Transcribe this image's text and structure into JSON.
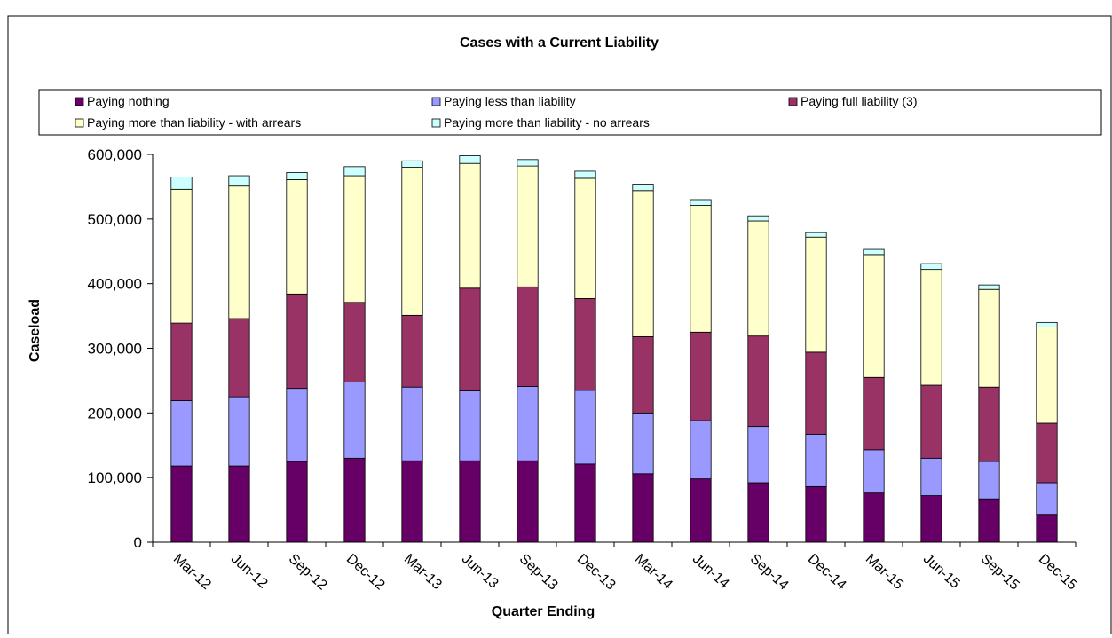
{
  "chart_data": {
    "type": "bar",
    "stacked": true,
    "title": "Cases with a Current Liability",
    "xlabel": "Quarter Ending",
    "ylabel": "Caseload",
    "ylim": [
      0,
      600000
    ],
    "yticks": [
      0,
      100000,
      200000,
      300000,
      400000,
      500000,
      600000
    ],
    "ytick_labels": [
      "0",
      "100,000",
      "200,000",
      "300,000",
      "400,000",
      "500,000",
      "600,000"
    ],
    "grid": false,
    "legend_position": "top",
    "categories": [
      "Mar-12",
      "Jun-12",
      "Sep-12",
      "Dec-12",
      "Mar-13",
      "Jun-13",
      "Sep-13",
      "Dec-13",
      "Mar-14",
      "Jun-14",
      "Sep-14",
      "Dec-14",
      "Mar-15",
      "Jun-15",
      "Sep-15",
      "Dec-15"
    ],
    "series": [
      {
        "name": "Paying nothing",
        "color": "#660066",
        "values": [
          118000,
          118000,
          125000,
          130000,
          126000,
          126000,
          126000,
          121000,
          106000,
          98000,
          92000,
          86000,
          76000,
          72000,
          67000,
          43000
        ]
      },
      {
        "name": "Paying less than liability",
        "color": "#9999ff",
        "values": [
          101000,
          107000,
          113000,
          118000,
          114000,
          108000,
          115000,
          114000,
          94000,
          90000,
          87000,
          81000,
          67000,
          58000,
          58000,
          49000
        ]
      },
      {
        "name": "Paying full liability (3)",
        "color": "#993366",
        "values": [
          120000,
          121000,
          146000,
          123000,
          111000,
          159000,
          154000,
          142000,
          118000,
          137000,
          140000,
          127000,
          112000,
          113000,
          115000,
          92000
        ]
      },
      {
        "name": "Paying more than liability - with arrears",
        "color": "#ffffcc",
        "values": [
          207000,
          205000,
          177000,
          196000,
          229000,
          193000,
          187000,
          186000,
          226000,
          196000,
          178000,
          178000,
          190000,
          179000,
          151000,
          149000
        ]
      },
      {
        "name": "Paying more than liability - no arrears",
        "color": "#ccffff",
        "values": [
          19000,
          16000,
          11000,
          14000,
          10000,
          12000,
          10000,
          11000,
          10000,
          9000,
          8000,
          7000,
          8000,
          9000,
          7000,
          7000
        ]
      }
    ]
  }
}
